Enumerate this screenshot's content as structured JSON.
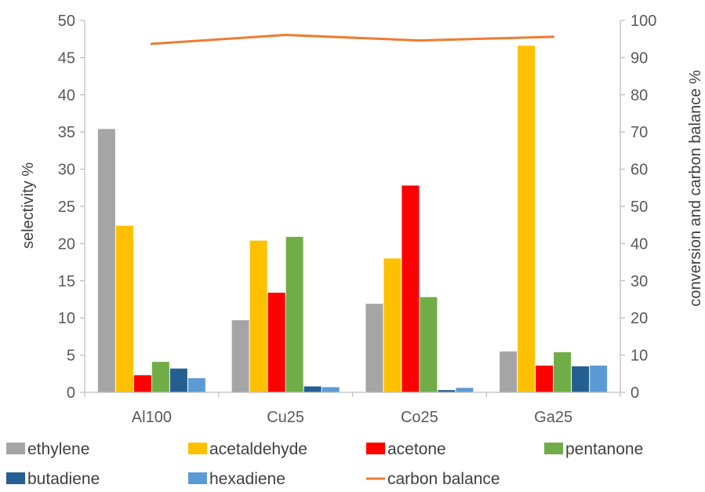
{
  "chart_data": {
    "type": "bar",
    "categories": [
      "Al100",
      "Cu25",
      "Co25",
      "Ga25"
    ],
    "series": [
      {
        "name": "ethylene",
        "color": "#a5a5a5",
        "values": [
          35.4,
          9.7,
          11.9,
          5.5
        ]
      },
      {
        "name": "acetaldehyde",
        "color": "#ffc000",
        "values": [
          22.4,
          20.4,
          18.0,
          46.6
        ]
      },
      {
        "name": "acetone",
        "color": "#ff0000",
        "values": [
          2.3,
          13.4,
          27.8,
          3.6
        ]
      },
      {
        "name": "pentanone",
        "color": "#70ad47",
        "values": [
          4.1,
          20.9,
          12.8,
          5.4
        ]
      },
      {
        "name": "butadiene",
        "color": "#255e91",
        "values": [
          3.2,
          0.8,
          0.3,
          3.5
        ]
      },
      {
        "name": "hexadiene",
        "color": "#5b9bd5",
        "values": [
          1.9,
          0.7,
          0.6,
          3.6
        ]
      }
    ],
    "line_series": {
      "name": "carbon balance",
      "color": "#ed7d31",
      "axis": "right",
      "values": [
        93.7,
        96.1,
        94.6,
        95.6
      ]
    },
    "ylabel": "selectivity %",
    "y2label": "conversion and carbon balance %",
    "ylim": [
      0,
      50
    ],
    "y2lim": [
      0,
      100
    ],
    "yticks": [
      "0",
      "5",
      "10",
      "15",
      "20",
      "25",
      "30",
      "35",
      "40",
      "45",
      "50"
    ],
    "y2ticks": [
      "0",
      "10",
      "20",
      "30",
      "40",
      "50",
      "60",
      "70",
      "80",
      "90",
      "100"
    ],
    "grid": false,
    "legend_position": "bottom"
  }
}
